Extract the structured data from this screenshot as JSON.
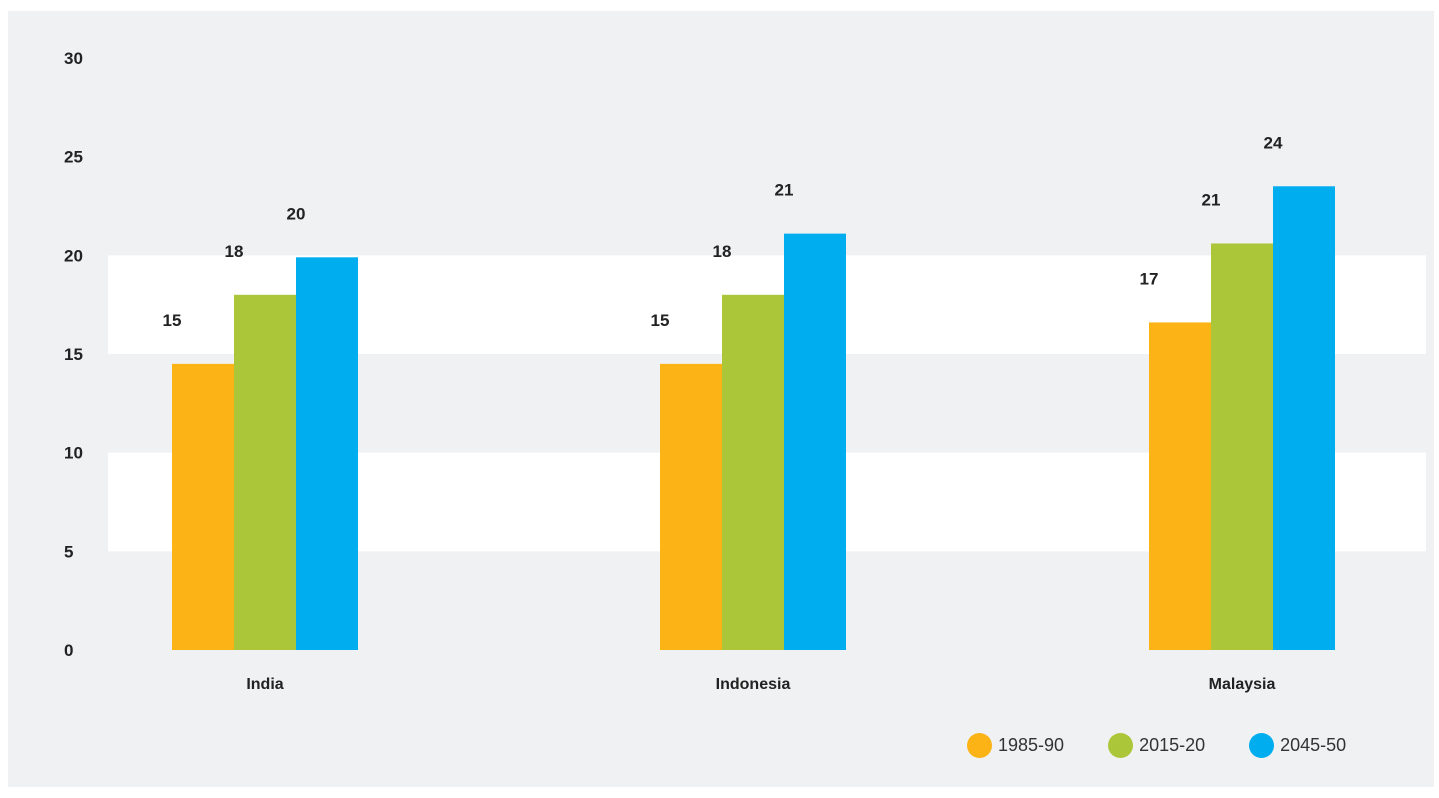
{
  "chart_data": {
    "type": "bar",
    "categories": [
      "India",
      "Indonesia",
      "Malaysia"
    ],
    "series": [
      {
        "name": "1985-90",
        "color": "#fbb316",
        "values": [
          14.5,
          14.5,
          16.6
        ],
        "labels": [
          "15",
          "15",
          "17"
        ]
      },
      {
        "name": "2015-20",
        "color": "#abc739",
        "values": [
          18.0,
          18.0,
          20.6
        ],
        "labels": [
          "18",
          "18",
          "21"
        ]
      },
      {
        "name": "2045-50",
        "color": "#00adef",
        "values": [
          19.9,
          21.1,
          23.5
        ],
        "labels": [
          "20",
          "21",
          "24"
        ]
      }
    ],
    "ylim": [
      0,
      30
    ],
    "yticks": [
      0,
      5,
      10,
      15,
      20,
      25,
      30
    ],
    "grid": "alternating bands",
    "legend_position": "bottom-right",
    "title": "",
    "xlabel": "",
    "ylabel": ""
  },
  "legend": {
    "items": [
      {
        "label": "1985-90",
        "color": "#fbb316"
      },
      {
        "label": "2015-20",
        "color": "#abc739"
      },
      {
        "label": "2045-50",
        "color": "#00adef"
      }
    ]
  }
}
